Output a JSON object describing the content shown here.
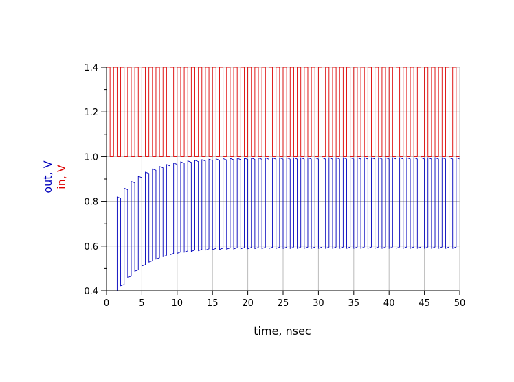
{
  "chart_data": {
    "type": "line",
    "title": "",
    "xlabel": "time, nsec",
    "ylabel_series": [
      "out, V",
      "in, V"
    ],
    "xlim": [
      0,
      50
    ],
    "ylim": [
      0.4,
      1.4
    ],
    "x_ticks": [
      0,
      5,
      10,
      15,
      20,
      25,
      30,
      35,
      40,
      45,
      50
    ],
    "y_ticks": [
      0.4,
      0.6,
      0.8,
      1.0,
      1.2,
      1.4
    ],
    "y_tick_labels": [
      "0.4",
      "0.6",
      "0.8",
      "1.0",
      "1.2",
      "1.4"
    ],
    "grid": true,
    "colors": {
      "out": "#0000bb",
      "in": "#dd0000",
      "grid": "#bbbbbb"
    },
    "series": [
      {
        "name": "in, V",
        "color": "#dd0000",
        "kind": "square-wave",
        "high": 1.4,
        "low": 1.0,
        "start": 0,
        "period_ns": 1.0,
        "end": 50
      },
      {
        "name": "out, V",
        "color": "#0000bb",
        "kind": "charging-square-response",
        "start_ns": 1.5,
        "period_ns": 1.0,
        "end": 50,
        "initial_low": 0.4,
        "final_low": 0.59,
        "initial_high": 0.82,
        "final_high": 0.995,
        "settle_tau_ns": 4.0
      }
    ]
  }
}
